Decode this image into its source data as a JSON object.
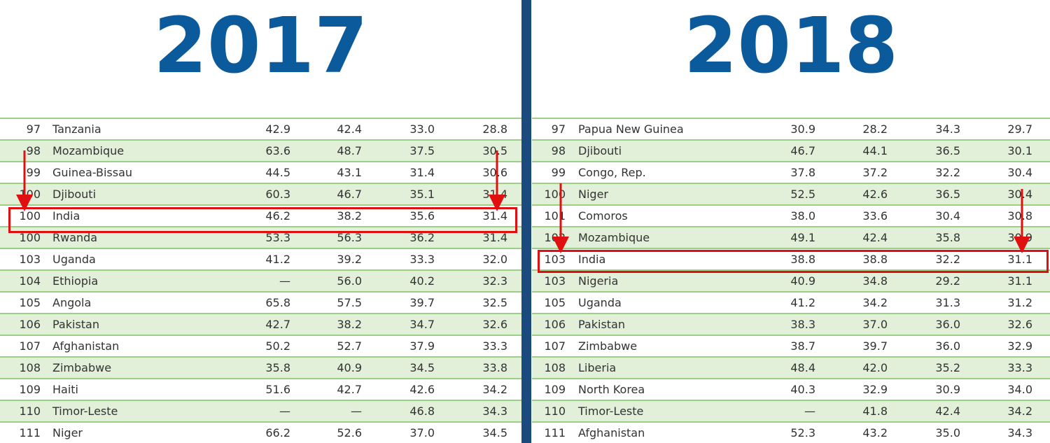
{
  "panels": [
    {
      "title": "2017",
      "rows": [
        [
          "97",
          "Tanzania",
          "42.9",
          "42.4",
          "33.0",
          "28.8"
        ],
        [
          "98",
          "Mozambique",
          "63.6",
          "48.7",
          "37.5",
          "30.5"
        ],
        [
          "99",
          "Guinea-Bissau",
          "44.5",
          "43.1",
          "31.4",
          "30.6"
        ],
        [
          "100",
          "Djibouti",
          "60.3",
          "46.7",
          "35.1",
          "31.4"
        ],
        [
          "100",
          "India",
          "46.2",
          "38.2",
          "35.6",
          "31.4"
        ],
        [
          "100",
          "Rwanda",
          "53.3",
          "56.3",
          "36.2",
          "31.4"
        ],
        [
          "103",
          "Uganda",
          "41.2",
          "39.2",
          "33.3",
          "32.0"
        ],
        [
          "104",
          "Ethiopia",
          "—",
          "56.0",
          "40.2",
          "32.3"
        ],
        [
          "105",
          "Angola",
          "65.8",
          "57.5",
          "39.7",
          "32.5"
        ],
        [
          "106",
          "Pakistan",
          "42.7",
          "38.2",
          "34.7",
          "32.6"
        ],
        [
          "107",
          "Afghanistan",
          "50.2",
          "52.7",
          "37.9",
          "33.3"
        ],
        [
          "108",
          "Zimbabwe",
          "35.8",
          "40.9",
          "34.5",
          "33.8"
        ],
        [
          "109",
          "Haiti",
          "51.6",
          "42.7",
          "42.6",
          "34.2"
        ],
        [
          "110",
          "Timor-Leste",
          "—",
          "—",
          "46.8",
          "34.3"
        ],
        [
          "111",
          "Niger",
          "66.2",
          "52.6",
          "37.0",
          "34.5"
        ]
      ]
    },
    {
      "title": "2018",
      "rows": [
        [
          "97",
          "Papua New Guinea",
          "30.9",
          "28.2",
          "34.3",
          "29.7"
        ],
        [
          "98",
          "Djibouti",
          "46.7",
          "44.1",
          "36.5",
          "30.1"
        ],
        [
          "99",
          "Congo, Rep.",
          "37.8",
          "37.2",
          "32.2",
          "30.4"
        ],
        [
          "100",
          "Niger",
          "52.5",
          "42.6",
          "36.5",
          "30.4"
        ],
        [
          "101",
          "Comoros",
          "38.0",
          "33.6",
          "30.4",
          "30.8"
        ],
        [
          "102",
          "Mozambique",
          "49.1",
          "42.4",
          "35.8",
          "30.9"
        ],
        [
          "103",
          "India",
          "38.8",
          "38.8",
          "32.2",
          "31.1"
        ],
        [
          "103",
          "Nigeria",
          "40.9",
          "34.8",
          "29.2",
          "31.1"
        ],
        [
          "105",
          "Uganda",
          "41.2",
          "34.2",
          "31.3",
          "31.2"
        ],
        [
          "106",
          "Pakistan",
          "38.3",
          "37.0",
          "36.0",
          "32.6"
        ],
        [
          "107",
          "Zimbabwe",
          "38.7",
          "39.7",
          "36.0",
          "32.9"
        ],
        [
          "108",
          "Liberia",
          "48.4",
          "42.0",
          "35.2",
          "33.3"
        ],
        [
          "109",
          "North Korea",
          "40.3",
          "32.9",
          "30.9",
          "34.0"
        ],
        [
          "110",
          "Timor-Leste",
          "—",
          "41.8",
          "42.4",
          "34.2"
        ],
        [
          "111",
          "Afghanistan",
          "52.3",
          "43.2",
          "35.0",
          "34.3"
        ]
      ]
    }
  ]
}
